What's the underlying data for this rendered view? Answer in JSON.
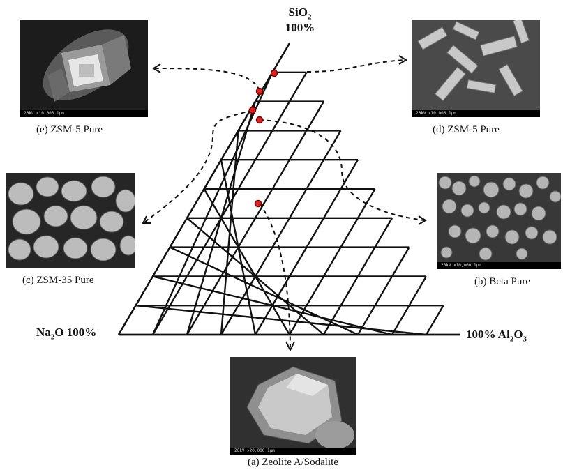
{
  "vertices": {
    "top_label_line1": "SiO",
    "top_label_sub": "2",
    "top_label_line2": "100%",
    "left_label_pre": "Na",
    "left_label_sub": "2",
    "left_label_post": "O 100%",
    "right_label_pre": "100% Al",
    "right_label_sub": "2",
    "right_label_post": "O",
    "right_label_sub2": "3"
  },
  "captions": {
    "a": "(a) Zeolite A/Sodalite",
    "b": "(b) Beta Pure",
    "c": "(c) ZSM-35 Pure",
    "d": "(d) ZSM-5 Pure",
    "e": "(e) ZSM-5 Pure"
  },
  "micrograph_bars": {
    "a": "20kV  ×20,000  1μm",
    "b": "20kV  ×10,000  1μm",
    "c": "",
    "d": "20kV  ×10,000  1μm",
    "e": "20kV  ×10,000  1μm"
  },
  "grid_divisions": 10,
  "colors": {
    "grid": "#111111",
    "marker": "#e02020",
    "arrow": "#111111"
  }
}
